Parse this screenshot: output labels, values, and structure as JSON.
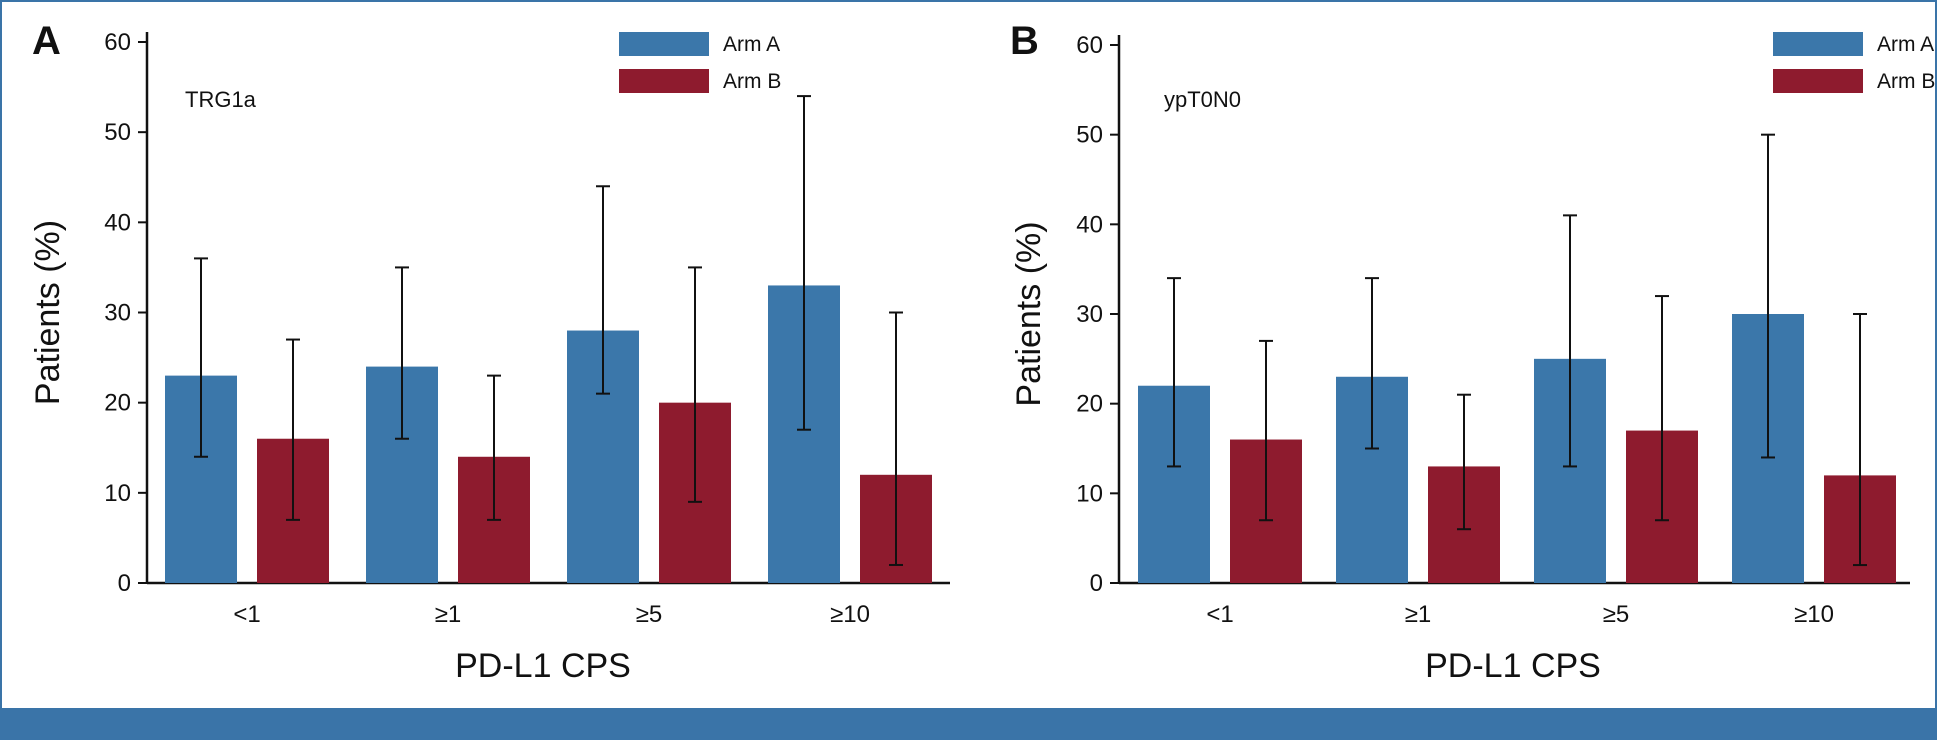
{
  "colors": {
    "arm_a": "#3b77aa",
    "arm_b": "#8e1b2e",
    "footer": "#3a74a8",
    "axis": "#111111"
  },
  "chart_data": [
    {
      "type": "bar",
      "panel_letter": "A",
      "subtitle": "TRG1a",
      "xlabel": "PD-L1 CPS",
      "ylabel": "Patients (%)",
      "ylim": [
        0,
        60
      ],
      "yticks": [
        0,
        10,
        20,
        30,
        40,
        50,
        60
      ],
      "categories": [
        "<1",
        "≥1",
        "≥5",
        "≥10"
      ],
      "legend_position": "top-right",
      "series": [
        {
          "name": "Arm A",
          "color_key": "arm_a",
          "values": [
            23,
            24,
            28,
            33
          ],
          "err_low": [
            14,
            16,
            21,
            17
          ],
          "err_high": [
            36,
            35,
            44,
            54
          ]
        },
        {
          "name": "Arm B",
          "color_key": "arm_b",
          "values": [
            16,
            14,
            20,
            12
          ],
          "err_low": [
            7,
            7,
            9,
            2
          ],
          "err_high": [
            27,
            23,
            35,
            30
          ]
        }
      ]
    },
    {
      "type": "bar",
      "panel_letter": "B",
      "subtitle": "ypT0N0",
      "xlabel": "PD-L1 CPS",
      "ylabel": "Patients (%)",
      "ylim": [
        0,
        60
      ],
      "yticks": [
        0,
        10,
        20,
        30,
        40,
        50,
        60
      ],
      "categories": [
        "<1",
        "≥1",
        "≥5",
        "≥10"
      ],
      "legend_position": "top-right",
      "series": [
        {
          "name": "Arm A",
          "color_key": "arm_a",
          "values": [
            22,
            23,
            25,
            30
          ],
          "err_low": [
            13,
            15,
            13,
            14
          ],
          "err_high": [
            34,
            34,
            41,
            50
          ]
        },
        {
          "name": "Arm B",
          "color_key": "arm_b",
          "values": [
            16,
            13,
            17,
            12
          ],
          "err_low": [
            7,
            6,
            7,
            2
          ],
          "err_high": [
            27,
            21,
            32,
            30
          ]
        }
      ]
    }
  ]
}
